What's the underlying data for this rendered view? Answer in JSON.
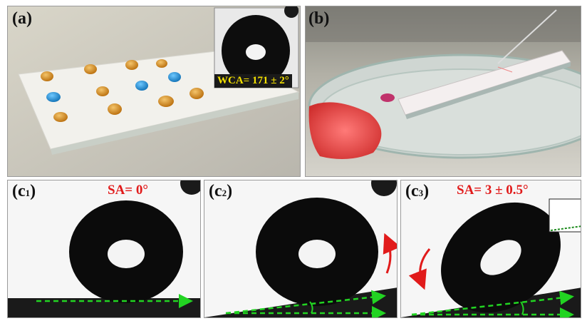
{
  "panels": {
    "a": {
      "label": "(a)",
      "wca_text": "WCA= 171 ± 2°"
    },
    "b": {
      "label": "(b)"
    },
    "c1": {
      "label_main": "(c",
      "label_sub": "1",
      "label_close": ")",
      "sa_text": "SA= 0°"
    },
    "c2": {
      "label_main": "(c",
      "label_sub": "2",
      "label_close": ")"
    },
    "c3": {
      "label_main": "(c",
      "label_sub": "3",
      "label_close": ")",
      "sa_text": "SA= 3 ± 0.5°"
    }
  },
  "colors": {
    "arrow_green": "#22d422",
    "arrow_red": "#e11b1b",
    "droplet_orange": "#d9881a",
    "droplet_blue": "#1d8fd8",
    "liquid_red": "#e0403f"
  }
}
